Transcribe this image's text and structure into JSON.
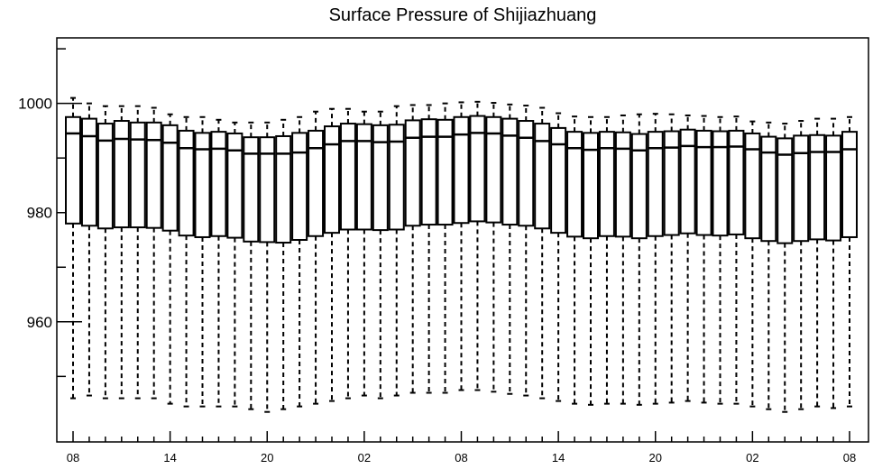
{
  "chart_data": {
    "type": "box",
    "title": "Surface Pressure of Shijiazhuang",
    "xlabel": "",
    "ylabel": "",
    "ylim": [
      938,
      1012
    ],
    "grid": false,
    "legend": "none",
    "yticks_major": [
      960,
      980,
      1000
    ],
    "yticks_minor": [
      950,
      970,
      990,
      1010
    ],
    "xtick_labels": [
      {
        "index": 0,
        "label": "08"
      },
      {
        "index": 6,
        "label": "14"
      },
      {
        "index": 12,
        "label": "20"
      },
      {
        "index": 18,
        "label": "02"
      },
      {
        "index": 24,
        "label": "08"
      },
      {
        "index": 30,
        "label": "14"
      },
      {
        "index": 36,
        "label": "20"
      },
      {
        "index": 42,
        "label": "02"
      },
      {
        "index": 48,
        "label": "08"
      }
    ],
    "box_values": {
      "max": [
        1001,
        1000,
        999.5,
        999.5,
        999.5,
        999.2,
        998,
        997.5,
        997.5,
        997,
        996.5,
        996.5,
        996.5,
        997,
        997.5,
        998.5,
        999,
        999,
        998.5,
        998.5,
        999.5,
        999.7,
        999.7,
        1000,
        1000.2,
        1000.3,
        1000.1,
        999.8,
        999.6,
        999.2,
        998.2,
        997.6,
        997.5,
        997.5,
        997.8,
        998,
        998.1,
        998,
        997.8,
        997.7,
        997.5,
        997.6,
        996.7,
        996.5,
        996.3,
        996.8,
        997.2,
        997.2,
        997.5
      ],
      "q3": [
        997.5,
        997.2,
        996.3,
        996.8,
        996.5,
        996.5,
        996,
        995,
        994.6,
        994.8,
        994.5,
        993.8,
        993.8,
        994,
        994.6,
        995,
        995.8,
        996.3,
        996.2,
        996,
        996.1,
        996.9,
        997.1,
        997,
        997.5,
        997.7,
        997.5,
        997.2,
        996.8,
        996.3,
        995.5,
        994.8,
        994.6,
        994.8,
        994.7,
        994.4,
        994.8,
        994.9,
        995.2,
        995,
        994.9,
        995,
        994.5,
        993.9,
        993.6,
        994.1,
        994.2,
        994.1,
        994.8
      ],
      "median": [
        994.5,
        994,
        993.2,
        993.5,
        993.4,
        993.3,
        992.8,
        991.8,
        991.6,
        991.7,
        991.4,
        990.8,
        990.8,
        990.8,
        991,
        991.8,
        992.5,
        993.1,
        993.1,
        992.9,
        993,
        993.7,
        993.9,
        993.9,
        994.3,
        994.6,
        994.5,
        994.1,
        993.7,
        993.1,
        992.5,
        991.8,
        991.5,
        991.8,
        991.7,
        991.4,
        991.8,
        991.9,
        992.2,
        992,
        992,
        992.1,
        991.6,
        991,
        990.6,
        990.9,
        991.1,
        991.1,
        991.6
      ],
      "q1": [
        978,
        977.6,
        977.1,
        977.3,
        977.3,
        977.2,
        976.7,
        975.8,
        975.5,
        975.7,
        975.4,
        974.7,
        974.6,
        974.5,
        975,
        975.7,
        976.3,
        976.9,
        976.9,
        976.8,
        976.9,
        977.6,
        977.8,
        977.8,
        978.1,
        978.4,
        978.2,
        977.8,
        977.6,
        977.1,
        976.3,
        975.6,
        975.3,
        975.7,
        975.6,
        975.3,
        975.7,
        975.9,
        976.2,
        975.9,
        975.8,
        976,
        975.3,
        974.8,
        974.4,
        974.8,
        975.1,
        974.9,
        975.5
      ],
      "min": [
        946,
        946.5,
        946,
        946,
        946,
        946,
        945,
        944.5,
        944.5,
        944.5,
        944.5,
        944,
        943.5,
        944,
        944.5,
        945,
        945.5,
        946,
        946.5,
        946,
        946.5,
        947,
        947,
        947,
        947.5,
        947.5,
        947.2,
        946.8,
        946.5,
        946,
        945.5,
        945,
        944.8,
        945,
        945,
        944.8,
        945,
        945.2,
        945.5,
        945.2,
        945,
        945,
        944.5,
        944,
        943.5,
        944,
        944.5,
        944.2,
        944.5
      ]
    }
  }
}
